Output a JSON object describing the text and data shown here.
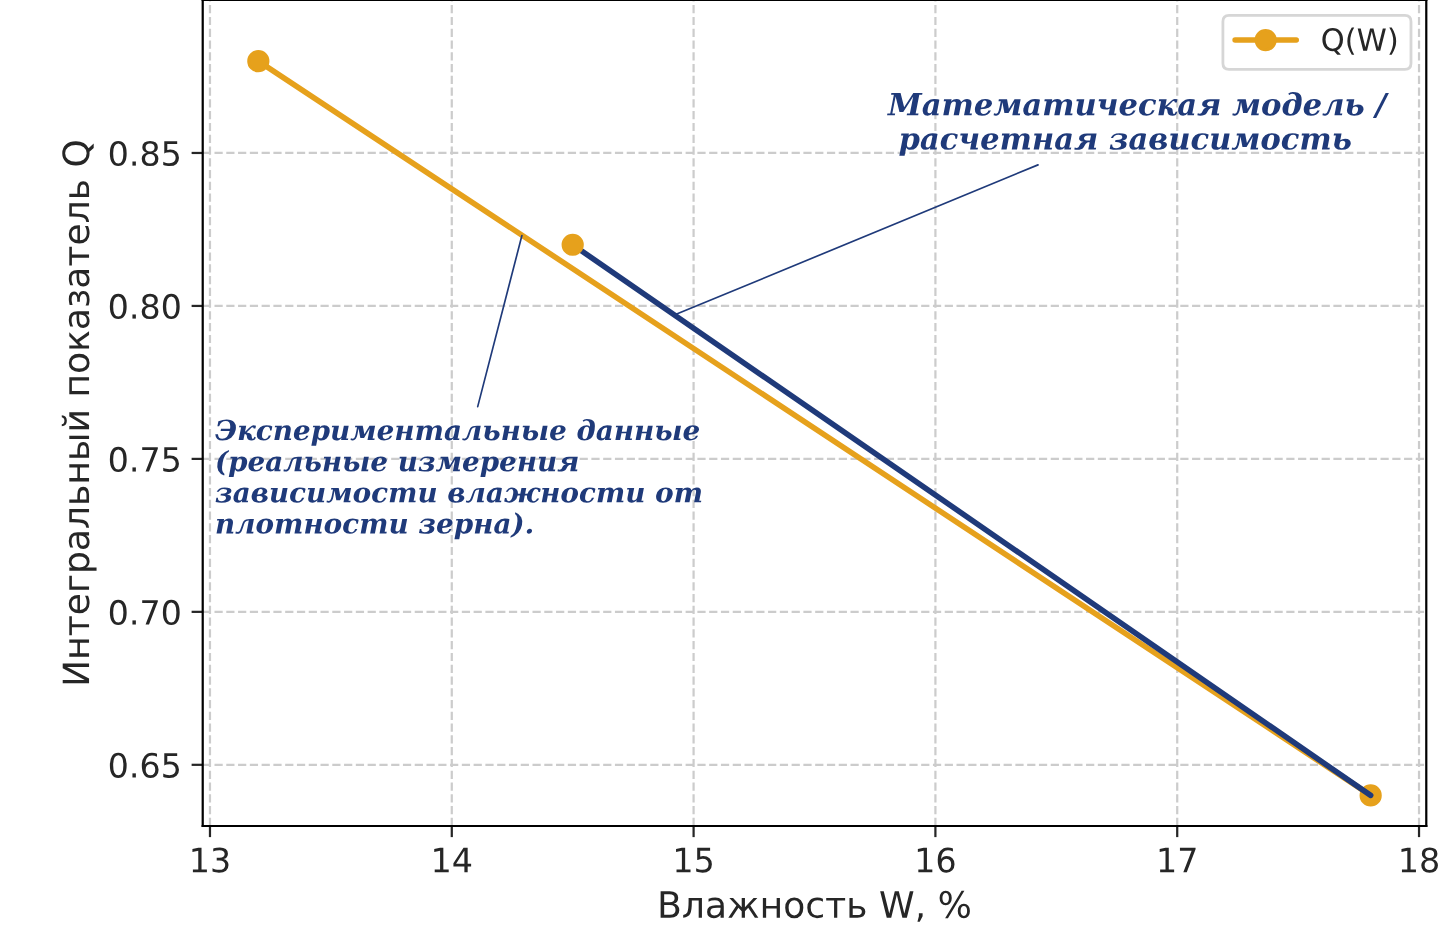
{
  "chart_data": {
    "type": "line",
    "xlabel": "Влажность W, %",
    "ylabel": "Интегральный показатель Q",
    "series": [
      {
        "name": "Q(W)",
        "color": "#e6a11c",
        "x": [
          13.2,
          17.8
        ],
        "values": [
          0.88,
          0.64
        ],
        "marker": "circle"
      },
      {
        "type": "scatter",
        "color": "#e6a11c",
        "x": [
          14.5
        ],
        "values": [
          0.82
        ],
        "marker": "circle"
      },
      {
        "color": "#1f3a7a",
        "x": [
          14.5,
          17.8
        ],
        "values": [
          0.82,
          0.64
        ],
        "marker": "none"
      }
    ],
    "xlim": [
      12.97,
      18.03
    ],
    "ylim": [
      0.63,
      0.9
    ],
    "xticks": [
      13,
      14,
      15,
      16,
      17,
      18
    ],
    "yticks": [
      {
        "value": 0.65,
        "label": "0.65"
      },
      {
        "value": 0.7,
        "label": "0.70"
      },
      {
        "value": 0.75,
        "label": "0.75"
      },
      {
        "value": 0.8,
        "label": "0.80"
      },
      {
        "value": 0.85,
        "label": "0.85"
      }
    ],
    "grid": true,
    "legend": "top right",
    "annotations": [
      {
        "text": "Математическая модель /\n расчетная зависимость",
        "x": 14.92,
        "y": 0.797
      },
      {
        "text": "Экспериментальные данные\n(реальные измерения\nзависимости влажности от\nплотности зерна).",
        "x": 14.29,
        "y": 0.823
      }
    ]
  }
}
